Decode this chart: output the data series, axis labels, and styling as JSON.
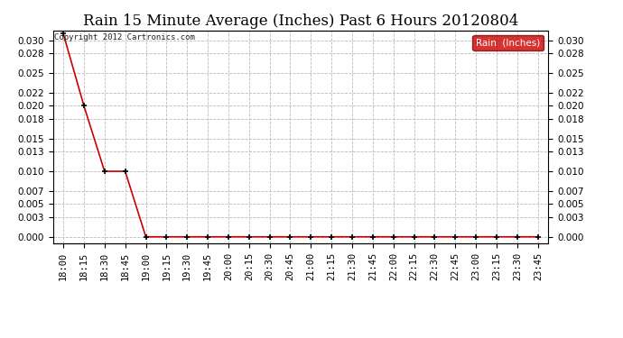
{
  "title": "Rain 15 Minute Average (Inches) Past 6 Hours 20120804",
  "copyright": "Copyright 2012 Cartronics.com",
  "legend_label": "Rain  (Inches)",
  "line_color": "#cc0000",
  "marker_color": "#000000",
  "background_color": "#ffffff",
  "grid_color": "#bbbbbb",
  "x_labels": [
    "18:00",
    "18:15",
    "18:30",
    "18:45",
    "19:00",
    "19:15",
    "19:30",
    "19:45",
    "20:00",
    "20:15",
    "20:30",
    "20:45",
    "21:00",
    "21:15",
    "21:30",
    "21:45",
    "22:00",
    "22:15",
    "22:30",
    "22:45",
    "23:00",
    "23:15",
    "23:30",
    "23:45"
  ],
  "y_values": [
    0.031,
    0.02,
    0.01,
    0.01,
    0.0,
    0.0,
    0.0,
    0.0,
    0.0,
    0.0,
    0.0,
    0.0,
    0.0,
    0.0,
    0.0,
    0.0,
    0.0,
    0.0,
    0.0,
    0.0,
    0.0,
    0.0,
    0.0,
    0.0
  ],
  "y_ticks": [
    0.0,
    0.003,
    0.005,
    0.007,
    0.01,
    0.013,
    0.015,
    0.018,
    0.02,
    0.022,
    0.025,
    0.028,
    0.03
  ],
  "ylim": [
    -0.001,
    0.0315
  ],
  "title_fontsize": 12,
  "tick_fontsize": 7.5,
  "copyright_fontsize": 6.5
}
